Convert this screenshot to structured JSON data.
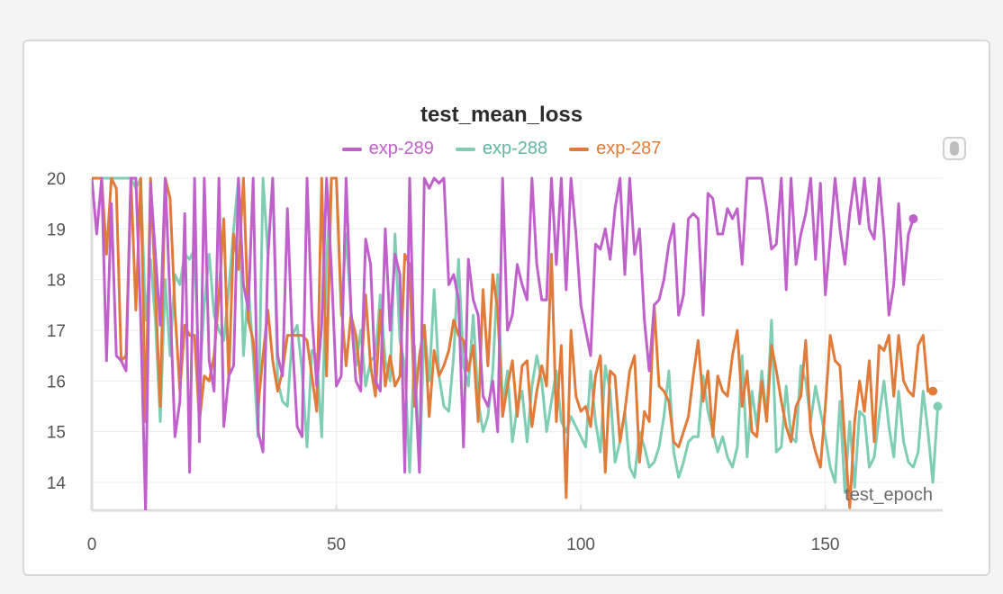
{
  "panel": {
    "scroll_icon": "scroll-handle-icon"
  },
  "chart_data": {
    "type": "line",
    "title": "test_mean_loss",
    "xlabel": "test_epoch",
    "ylabel": "",
    "xlim": [
      0,
      174
    ],
    "ylim": [
      13.45,
      20.0
    ],
    "xticks": [
      0,
      50,
      100,
      150
    ],
    "yticks": [
      14,
      15,
      16,
      17,
      18,
      19,
      20
    ],
    "grid": true,
    "legend_position": "top-center",
    "series": [
      {
        "name": "exp-289",
        "color": "#c061cb",
        "marker_last": true,
        "values": [
          20.0,
          18.9,
          20.0,
          16.4,
          19.5,
          16.5,
          16.4,
          16.2,
          20.0,
          20.0,
          17.2,
          13.4,
          19.9,
          18.5,
          17.1,
          20.0,
          17.6,
          14.9,
          15.6,
          19.3,
          14.2,
          20.0,
          14.8,
          20.0,
          16.4,
          15.8,
          20.0,
          15.1,
          16.1,
          16.3,
          20.0,
          17.9,
          17.4,
          20.0,
          15.0,
          14.6,
          18.4,
          20.0,
          16.5,
          16.1,
          19.4,
          16.8,
          15.1,
          14.9,
          20.0,
          17.3,
          15.9,
          17.1,
          20.0,
          18.2,
          15.9,
          16.1,
          20.0,
          17.4,
          16.0,
          15.8,
          18.8,
          18.3,
          16.0,
          15.8,
          19.0,
          17.0,
          18.5,
          18.1,
          14.2,
          20.0,
          16.2,
          14.2,
          20.0,
          19.8,
          20.0,
          19.9,
          20.0,
          17.9,
          18.1,
          17.6,
          14.7,
          18.4,
          17.6,
          17.3,
          15.7,
          15.5,
          16.0,
          15.0,
          20.0,
          17.0,
          17.3,
          18.3,
          17.9,
          17.6,
          20.0,
          18.3,
          17.6,
          17.6,
          20.0,
          18.3,
          20.0,
          17.8,
          20.0,
          18.9,
          17.5,
          17.0,
          16.5,
          18.7,
          18.6,
          19.0,
          18.4,
          19.4,
          20.0,
          18.1,
          20.0,
          18.5,
          19.0,
          17.2,
          16.2,
          17.5,
          17.6,
          18.0,
          18.7,
          19.1,
          17.3,
          17.7,
          19.2,
          19.3,
          19.2,
          17.3,
          19.7,
          19.6,
          18.9,
          18.9,
          19.4,
          19.2,
          19.4,
          18.3,
          20.0,
          20.0,
          20.0,
          20.0,
          19.4,
          18.6,
          18.7,
          20.0,
          17.8,
          20.0,
          18.3,
          18.9,
          19.3,
          20.0,
          18.4,
          19.9,
          17.7,
          18.8,
          20.0,
          19.0,
          18.3,
          19.3,
          20.0,
          19.1,
          20.0,
          19.0,
          18.8,
          20.0,
          18.9,
          17.3,
          17.9,
          19.5,
          17.9,
          18.9,
          19.2
        ]
      },
      {
        "name": "exp-288",
        "color": "#7fcdb4",
        "marker_last": true,
        "values": [
          20.0,
          20.0,
          20.0,
          20.0,
          20.0,
          20.0,
          20.0,
          20.0,
          20.0,
          19.8,
          20.0,
          17.2,
          18.4,
          17.2,
          15.2,
          18.0,
          16.5,
          18.1,
          17.9,
          18.5,
          18.4,
          18.6,
          16.0,
          17.5,
          18.5,
          17.3,
          17.0,
          16.8,
          17.8,
          19.0,
          20.0,
          16.5,
          17.9,
          16.5,
          14.9,
          20.0,
          18.5,
          20.0,
          16.0,
          15.6,
          15.5,
          16.9,
          17.1,
          16.2,
          14.7,
          16.6,
          16.5,
          14.9,
          18.4,
          20.0,
          20.0,
          17.3,
          18.9,
          17.4,
          16.3,
          17.0,
          15.9,
          16.4,
          16.5,
          17.7,
          16.4,
          16.0,
          18.9,
          16.8,
          16.3,
          14.2,
          16.7,
          14.2,
          17.1,
          16.0,
          17.8,
          16.1,
          15.5,
          15.4,
          16.5,
          18.4,
          16.3,
          15.9,
          17.3,
          15.6,
          15.0,
          15.3,
          16.2,
          18.1,
          15.5,
          16.2,
          14.8,
          15.5,
          15.8,
          14.8,
          15.9,
          16.5,
          16.0,
          15.0,
          15.6,
          16.2,
          15.2,
          15.0,
          15.3,
          15.1,
          14.9,
          14.7,
          16.2,
          15.2,
          14.6,
          16.3,
          15.8,
          14.4,
          14.8,
          15.4,
          14.3,
          14.1,
          15.0,
          14.7,
          14.3,
          14.4,
          14.7,
          15.3,
          16.2,
          14.6,
          14.1,
          14.4,
          14.8,
          14.9,
          14.9,
          16.1,
          15.4,
          15.0,
          14.6,
          14.9,
          14.5,
          14.3,
          14.7,
          16.5,
          14.5,
          15.8,
          15.1,
          16.2,
          15.3,
          17.2,
          14.6,
          14.7,
          15.9,
          14.9,
          14.8,
          16.3,
          16.0,
          15.2,
          15.9,
          15.4,
          14.9,
          14.3,
          14.0,
          15.6,
          13.8,
          15.2,
          13.9,
          15.4,
          15.3,
          14.3,
          14.5,
          15.3,
          16.0,
          15.1,
          14.5,
          15.8,
          14.8,
          14.4,
          14.3,
          14.6,
          15.8,
          15.0,
          14.0,
          15.5
        ]
      },
      {
        "name": "exp-287",
        "color": "#e07b39",
        "marker_last": true,
        "values": [
          20.0,
          20.0,
          20.0,
          18.5,
          20.0,
          19.8,
          16.4,
          16.5,
          20.0,
          17.4,
          20.0,
          15.2,
          20.0,
          17.8,
          15.5,
          20.0,
          19.6,
          17.4,
          15.8,
          17.1,
          16.9,
          16.9,
          15.2,
          16.1,
          16.0,
          16.5,
          17.7,
          19.2,
          16.0,
          18.9,
          18.2,
          20.0,
          17.2,
          16.8,
          15.5,
          16.5,
          17.4,
          16.4,
          15.8,
          16.2,
          16.9,
          16.9,
          16.9,
          16.9,
          16.8,
          16.1,
          15.4,
          20.0,
          16.1,
          20.0,
          20.0,
          17.5,
          16.3,
          17.3,
          16.9,
          16.0,
          17.7,
          16.3,
          15.7,
          17.4,
          15.9,
          16.5,
          15.9,
          16.1,
          18.5,
          18.3,
          15.5,
          16.5,
          17.1,
          15.3,
          16.6,
          16.1,
          16.3,
          16.6,
          17.2,
          16.9,
          16.8,
          16.2,
          16.7,
          15.2,
          17.8,
          16.3,
          18.1,
          17.4,
          15.3,
          15.9,
          16.4,
          15.3,
          16.3,
          16.4,
          15.1,
          15.8,
          16.3,
          15.9,
          18.5,
          15.2,
          16.7,
          13.7,
          17.0,
          15.7,
          15.4,
          15.5,
          15.1,
          16.1,
          16.5,
          14.2,
          16.2,
          16.1,
          14.8,
          15.4,
          16.2,
          16.5,
          14.4,
          15.4,
          15.2,
          17.5,
          15.9,
          15.8,
          15.6,
          14.8,
          14.7,
          15.0,
          15.3,
          16.1,
          16.8,
          15.6,
          16.2,
          14.9,
          16.1,
          15.8,
          15.7,
          16.5,
          17.0,
          15.5,
          16.2,
          15.0,
          14.9,
          16.0,
          15.2,
          16.7,
          16.2,
          15.6,
          15.1,
          14.8,
          15.5,
          15.7,
          16.8,
          15.0,
          14.6,
          14.3,
          15.5,
          16.9,
          16.4,
          16.3,
          14.8,
          13.5,
          15.2,
          16.0,
          15.4,
          16.4,
          14.8,
          16.7,
          16.6,
          16.9,
          15.7,
          16.9,
          16.0,
          15.8,
          15.7,
          16.7,
          16.9,
          15.8,
          15.8
        ]
      }
    ]
  }
}
